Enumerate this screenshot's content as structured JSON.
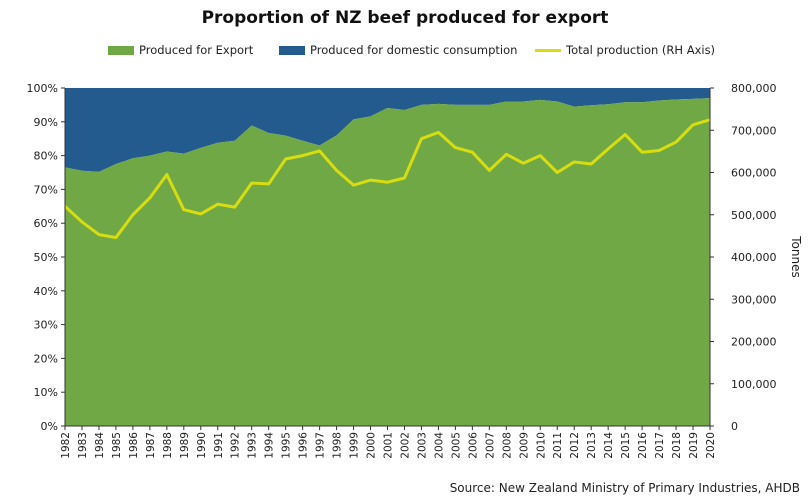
{
  "chart_data": {
    "type": "area",
    "title": "Proportion of NZ beef produced for export",
    "source": "Source: New Zealand Ministry of Primary Industries, AHDB",
    "categories": [
      "1982",
      "1983",
      "1984",
      "1985",
      "1986",
      "1987",
      "1988",
      "1989",
      "1990",
      "1991",
      "1992",
      "1993",
      "1994",
      "1995",
      "1996",
      "1997",
      "1998",
      "1999",
      "2000",
      "2001",
      "2002",
      "2003",
      "2004",
      "2005",
      "2006",
      "2007",
      "2008",
      "2009",
      "2010",
      "2011",
      "2012",
      "2013",
      "2014",
      "2015",
      "2016",
      "2017",
      "2018",
      "2019",
      "2020"
    ],
    "left_axis": {
      "range": [
        0,
        100
      ],
      "ticks": [
        "0%",
        "10%",
        "20%",
        "30%",
        "40%",
        "50%",
        "60%",
        "70%",
        "80%",
        "90%",
        "100%"
      ]
    },
    "right_axis": {
      "label": "Tonnes",
      "range": [
        0,
        800000
      ],
      "ticks": [
        "0",
        "100,000",
        "200,000",
        "300,000",
        "400,000",
        "500,000",
        "600,000",
        "700,000",
        "800,000"
      ]
    },
    "series": [
      {
        "name": "Produced for Export",
        "kind": "area",
        "axis": "left",
        "color": "#70a845",
        "values": [
          76.5,
          75.5,
          75.2,
          77.5,
          79.2,
          80.0,
          81.2,
          80.6,
          82.3,
          83.8,
          84.4,
          88.9,
          86.7,
          85.9,
          84.4,
          83.0,
          86.0,
          90.7,
          91.6,
          94.1,
          93.5,
          95.0,
          95.3,
          95.0,
          95.0,
          95.0,
          96.0,
          96.0,
          96.5,
          96.0,
          94.5,
          94.9,
          95.2,
          95.8,
          95.8,
          96.3,
          96.6,
          96.8,
          97.0
        ]
      },
      {
        "name": "Produced for domestic consumption",
        "kind": "area",
        "axis": "left",
        "color": "#235b8e",
        "values": [
          23.5,
          24.5,
          24.8,
          22.5,
          20.8,
          20.0,
          18.8,
          19.4,
          17.7,
          16.2,
          15.6,
          11.1,
          13.3,
          14.1,
          15.6,
          17.0,
          14.0,
          9.3,
          8.4,
          5.9,
          6.5,
          5.0,
          4.7,
          5.0,
          5.0,
          5.0,
          4.0,
          4.0,
          3.5,
          4.0,
          5.5,
          5.1,
          4.8,
          4.2,
          4.2,
          3.7,
          3.4,
          3.2,
          3.0
        ]
      },
      {
        "name": "Total production (RH Axis)",
        "kind": "line",
        "axis": "right",
        "color": "#d8dd10",
        "values": [
          520000,
          483000,
          453000,
          446000,
          500000,
          540000,
          595000,
          512000,
          502000,
          525000,
          518000,
          575000,
          573000,
          632000,
          640000,
          651000,
          605000,
          570000,
          582000,
          577000,
          587000,
          680000,
          695000,
          659000,
          648000,
          605000,
          643000,
          622000,
          640000,
          600000,
          625000,
          620000,
          656000,
          690000,
          648000,
          652000,
          672000,
          713000,
          725000
        ]
      }
    ],
    "legend_position": "top",
    "grid": false
  }
}
